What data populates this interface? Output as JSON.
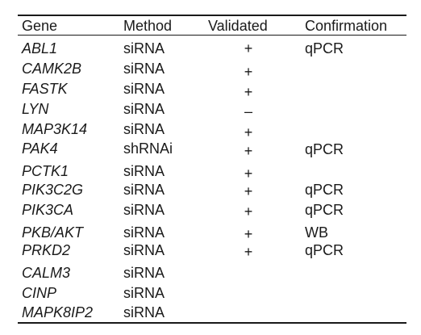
{
  "headers": {
    "gene": "Gene",
    "method": "Method",
    "validated": "Validated",
    "confirmation": "Confirmation"
  },
  "rows": [
    {
      "gene": "ABL1",
      "method": "siRNA",
      "validated": "+",
      "confirmation": "qPCR"
    },
    {
      "gene": "CAMK2B",
      "method": "siRNA",
      "validated": "+",
      "confirmation": ""
    },
    {
      "gene": "FASTK",
      "method": "siRNA",
      "validated": "+",
      "confirmation": ""
    },
    {
      "gene": "LYN",
      "method": "siRNA",
      "validated": "–",
      "confirmation": ""
    },
    {
      "gene": "MAP3K14",
      "method": "siRNA",
      "validated": "+",
      "confirmation": ""
    },
    {
      "gene": "PAK4",
      "method": "shRNAi",
      "validated": "+",
      "confirmation": "qPCR"
    },
    {
      "gene": "PCTK1",
      "method": "siRNA",
      "validated": "+",
      "confirmation": ""
    },
    {
      "gene": "PIK3C2G",
      "method": "siRNA",
      "validated": "+",
      "confirmation": "qPCR"
    },
    {
      "gene": "PIK3CA",
      "method": "siRNA",
      "validated": "+",
      "confirmation": "qPCR"
    },
    {
      "gene": "PKB/AKT",
      "method": "siRNA",
      "validated": "+",
      "confirmation": "WB"
    },
    {
      "gene": "PRKD2",
      "method": "siRNA",
      "validated": "+",
      "confirmation": "qPCR"
    },
    {
      "gene": "CALM3",
      "method": "siRNA",
      "validated": "",
      "confirmation": ""
    },
    {
      "gene": "CINP",
      "method": "siRNA",
      "validated": "",
      "confirmation": ""
    },
    {
      "gene": "MAPK8IP2",
      "method": "siRNA",
      "validated": "",
      "confirmation": ""
    }
  ]
}
